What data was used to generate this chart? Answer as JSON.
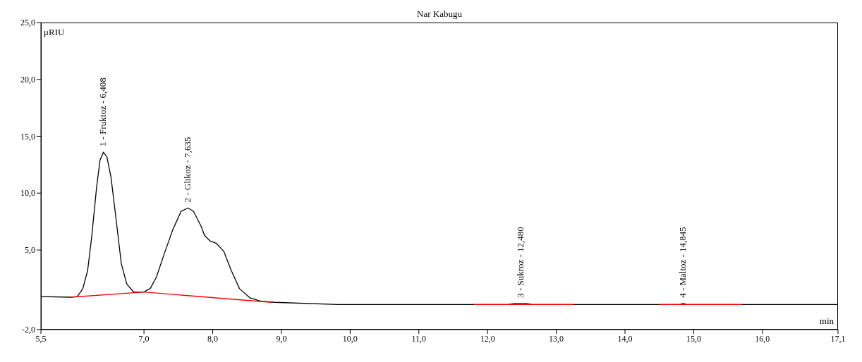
{
  "chart_data": {
    "type": "line",
    "title": "Nar Kabugu",
    "xlabel": "min",
    "ylabel": "μRIU",
    "marker": "none",
    "line_style": "solid",
    "grid": false,
    "xlim": [
      5.5,
      17.1
    ],
    "ylim": [
      -2.0,
      25.0
    ],
    "xticks": [
      {
        "value": 5.5,
        "label": "5,5"
      },
      {
        "value": 7.0,
        "label": "7,0"
      },
      {
        "value": 8.0,
        "label": "8,0"
      },
      {
        "value": 9.0,
        "label": "9,0"
      },
      {
        "value": 10.0,
        "label": "10,0"
      },
      {
        "value": 11.0,
        "label": "11,0"
      },
      {
        "value": 12.0,
        "label": "12,0"
      },
      {
        "value": 13.0,
        "label": "13,0"
      },
      {
        "value": 14.0,
        "label": "14,0"
      },
      {
        "value": 15.0,
        "label": "15,0"
      },
      {
        "value": 16.0,
        "label": "16,0"
      },
      {
        "value": 17.1,
        "label": "17,1"
      }
    ],
    "yticks": [
      {
        "value": -2.0,
        "label": "-2,0"
      },
      {
        "value": 5.0,
        "label": "5,0"
      },
      {
        "value": 10.0,
        "label": "10,0"
      },
      {
        "value": 15.0,
        "label": "15,0"
      },
      {
        "value": 20.0,
        "label": "20,0"
      },
      {
        "value": 25.0,
        "label": "25,0"
      }
    ],
    "series": [
      {
        "color": "#000000",
        "x": [
          5.5,
          5.93,
          6.03,
          6.11,
          6.18,
          6.24,
          6.31,
          6.36,
          6.41,
          6.46,
          6.52,
          6.6,
          6.67,
          6.75,
          6.85,
          6.99,
          7.09,
          7.18,
          7.28,
          7.42,
          7.54,
          7.64,
          7.72,
          7.83,
          7.88,
          7.96,
          8.05,
          8.16,
          8.27,
          8.39,
          8.54,
          8.7,
          8.9,
          9.82,
          12.3,
          12.4,
          12.56,
          12.65,
          14.8,
          14.845,
          14.9,
          17.1
        ],
        "values": [
          0.9,
          0.85,
          0.9,
          1.6,
          3.2,
          6.2,
          10.5,
          12.9,
          13.6,
          13.2,
          11.4,
          7.4,
          3.8,
          2.0,
          1.3,
          1.3,
          1.6,
          2.6,
          4.4,
          6.8,
          8.4,
          8.7,
          8.4,
          7.1,
          6.3,
          5.8,
          5.6,
          4.9,
          3.2,
          1.6,
          0.8,
          0.5,
          0.4,
          0.2,
          0.2,
          0.3,
          0.3,
          0.2,
          0.2,
          0.3,
          0.2,
          0.2
        ]
      },
      {
        "color": "#ff0000",
        "x": [
          5.93,
          7.0,
          8.85,
          9.0,
          11.8,
          13.25,
          13.5,
          14.5,
          15.7
        ],
        "values": [
          0.85,
          1.3,
          0.4,
          null,
          0.2,
          0.2,
          null,
          0.2,
          0.2
        ]
      }
    ],
    "annotations": [
      {
        "text": "1 - Fruktoz - 6,408",
        "x": 6.408,
        "y": 13.6
      },
      {
        "text": "2 - Glikoz - 7,635",
        "x": 7.635,
        "y": 8.7
      },
      {
        "text": "3 - Sukroz - 12,480",
        "x": 12.48,
        "y": 0.3
      },
      {
        "text": "4 - Maltoz - 14,845",
        "x": 14.845,
        "y": 0.3
      }
    ]
  }
}
